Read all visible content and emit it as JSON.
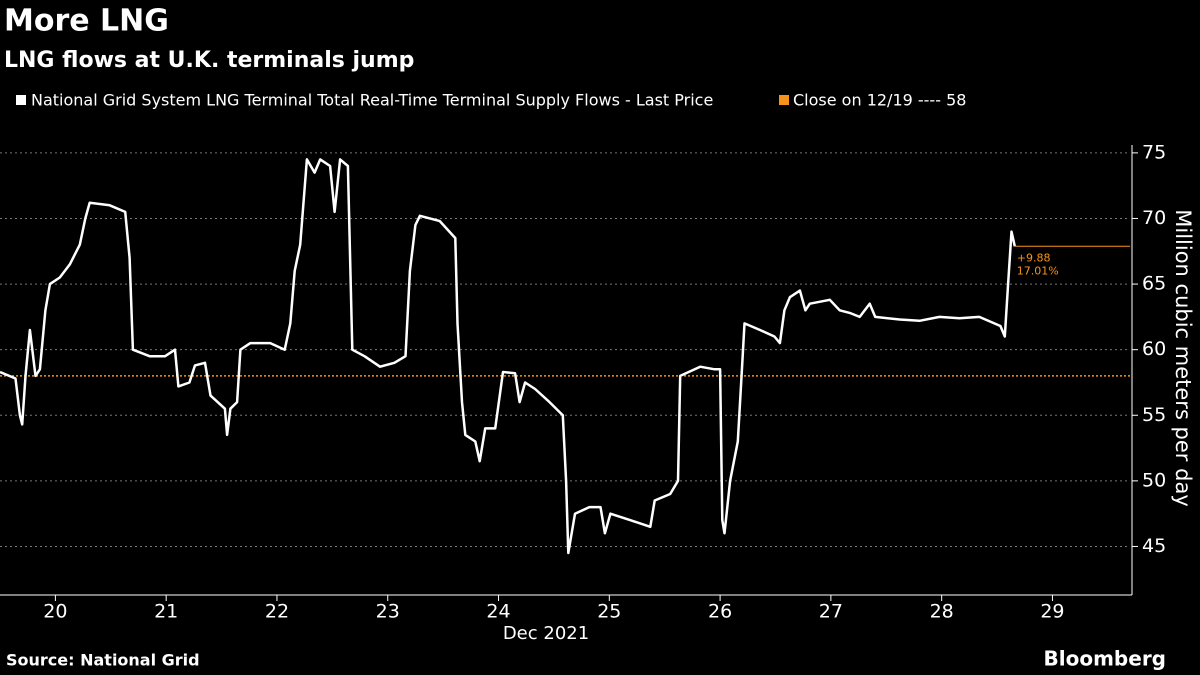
{
  "chart_data": {
    "type": "line",
    "title": "More LNG",
    "subtitle": "LNG flows at U.K. terminals jump",
    "x_label": "Dec 2021",
    "y_label": "Million cubic meters per day",
    "source": "Source: National Grid",
    "brand": "Bloomberg",
    "series": [
      {
        "name": "National Grid System LNG Terminal Total Real-Time Terminal Supply Flows - Last Price",
        "color": "#ffffff",
        "x": [
          19.5,
          19.64,
          19.68,
          19.7,
          19.73,
          19.77,
          19.82,
          19.86,
          19.91,
          19.95,
          20.04,
          20.13,
          20.22,
          20.27,
          20.31,
          20.49,
          20.63,
          20.67,
          20.7,
          20.85,
          20.99,
          21.08,
          21.11,
          21.21,
          21.26,
          21.35,
          21.4,
          21.53,
          21.55,
          21.58,
          21.64,
          21.67,
          21.76,
          21.94,
          22.07,
          22.12,
          22.16,
          22.21,
          22.27,
          22.34,
          22.39,
          22.48,
          22.52,
          22.57,
          22.64,
          22.68,
          22.79,
          22.93,
          23.06,
          23.16,
          23.2,
          23.25,
          23.29,
          23.47,
          23.61,
          23.63,
          23.67,
          23.7,
          23.79,
          23.83,
          23.88,
          23.97,
          24.04,
          24.15,
          24.19,
          24.24,
          24.33,
          24.46,
          24.58,
          24.61,
          24.63,
          24.69,
          24.82,
          24.92,
          24.96,
          25.01,
          25.19,
          25.37,
          25.41,
          25.55,
          25.62,
          25.64,
          25.82,
          25.95,
          26.0,
          26.02,
          26.04,
          26.09,
          26.16,
          26.2,
          26.22,
          26.36,
          26.49,
          26.54,
          26.58,
          26.63,
          26.72,
          26.77,
          26.81,
          26.99,
          27.08,
          27.17,
          27.26,
          27.35,
          27.4,
          27.62,
          27.8,
          27.98,
          28.16,
          28.34,
          28.53,
          28.57,
          28.6,
          28.63,
          28.66
        ],
        "values": [
          58.3,
          57.8,
          55,
          54.3,
          58,
          61.5,
          58,
          58.5,
          63,
          65,
          65.5,
          66.5,
          68,
          70,
          71.2,
          71,
          70.5,
          67,
          60,
          59.5,
          59.5,
          60,
          57.2,
          57.5,
          58.8,
          59,
          56.5,
          55.5,
          53.5,
          55.5,
          56,
          60,
          60.5,
          60.5,
          60,
          62,
          66,
          68,
          74.5,
          73.5,
          74.5,
          74,
          70.5,
          74.5,
          74,
          60,
          59.5,
          58.7,
          59,
          59.5,
          66,
          69.5,
          70.2,
          69.8,
          68.5,
          62,
          56,
          53.5,
          53,
          51.5,
          54,
          54,
          58.3,
          58.2,
          56,
          57.5,
          57,
          56,
          55,
          50,
          44.5,
          47.5,
          48,
          48,
          46,
          47.5,
          47,
          46.5,
          48.5,
          49,
          50,
          58,
          58.7,
          58.5,
          58.5,
          47,
          46,
          50,
          53,
          59,
          62,
          61.5,
          61,
          60.5,
          63,
          64,
          64.5,
          63,
          63.5,
          63.8,
          63,
          62.8,
          62.5,
          63.5,
          62.5,
          62.3,
          62.2,
          62.5,
          62.4,
          62.5,
          61.8,
          61,
          65,
          69,
          67.88
        ]
      }
    ],
    "reference_line": {
      "name": "Close on 12/19 ---- 58",
      "value": 58,
      "color": "#f7931a"
    },
    "change_labels": [
      "+9.88",
      "17.01%"
    ],
    "xlim": [
      19.5,
      29.7
    ],
    "xticks": [
      20,
      21,
      22,
      23,
      24,
      25,
      26,
      27,
      28,
      29
    ],
    "ylim": [
      41.3,
      75.6
    ],
    "yticks": [
      45,
      50,
      55,
      60,
      65,
      70,
      75
    ],
    "grid": true
  }
}
